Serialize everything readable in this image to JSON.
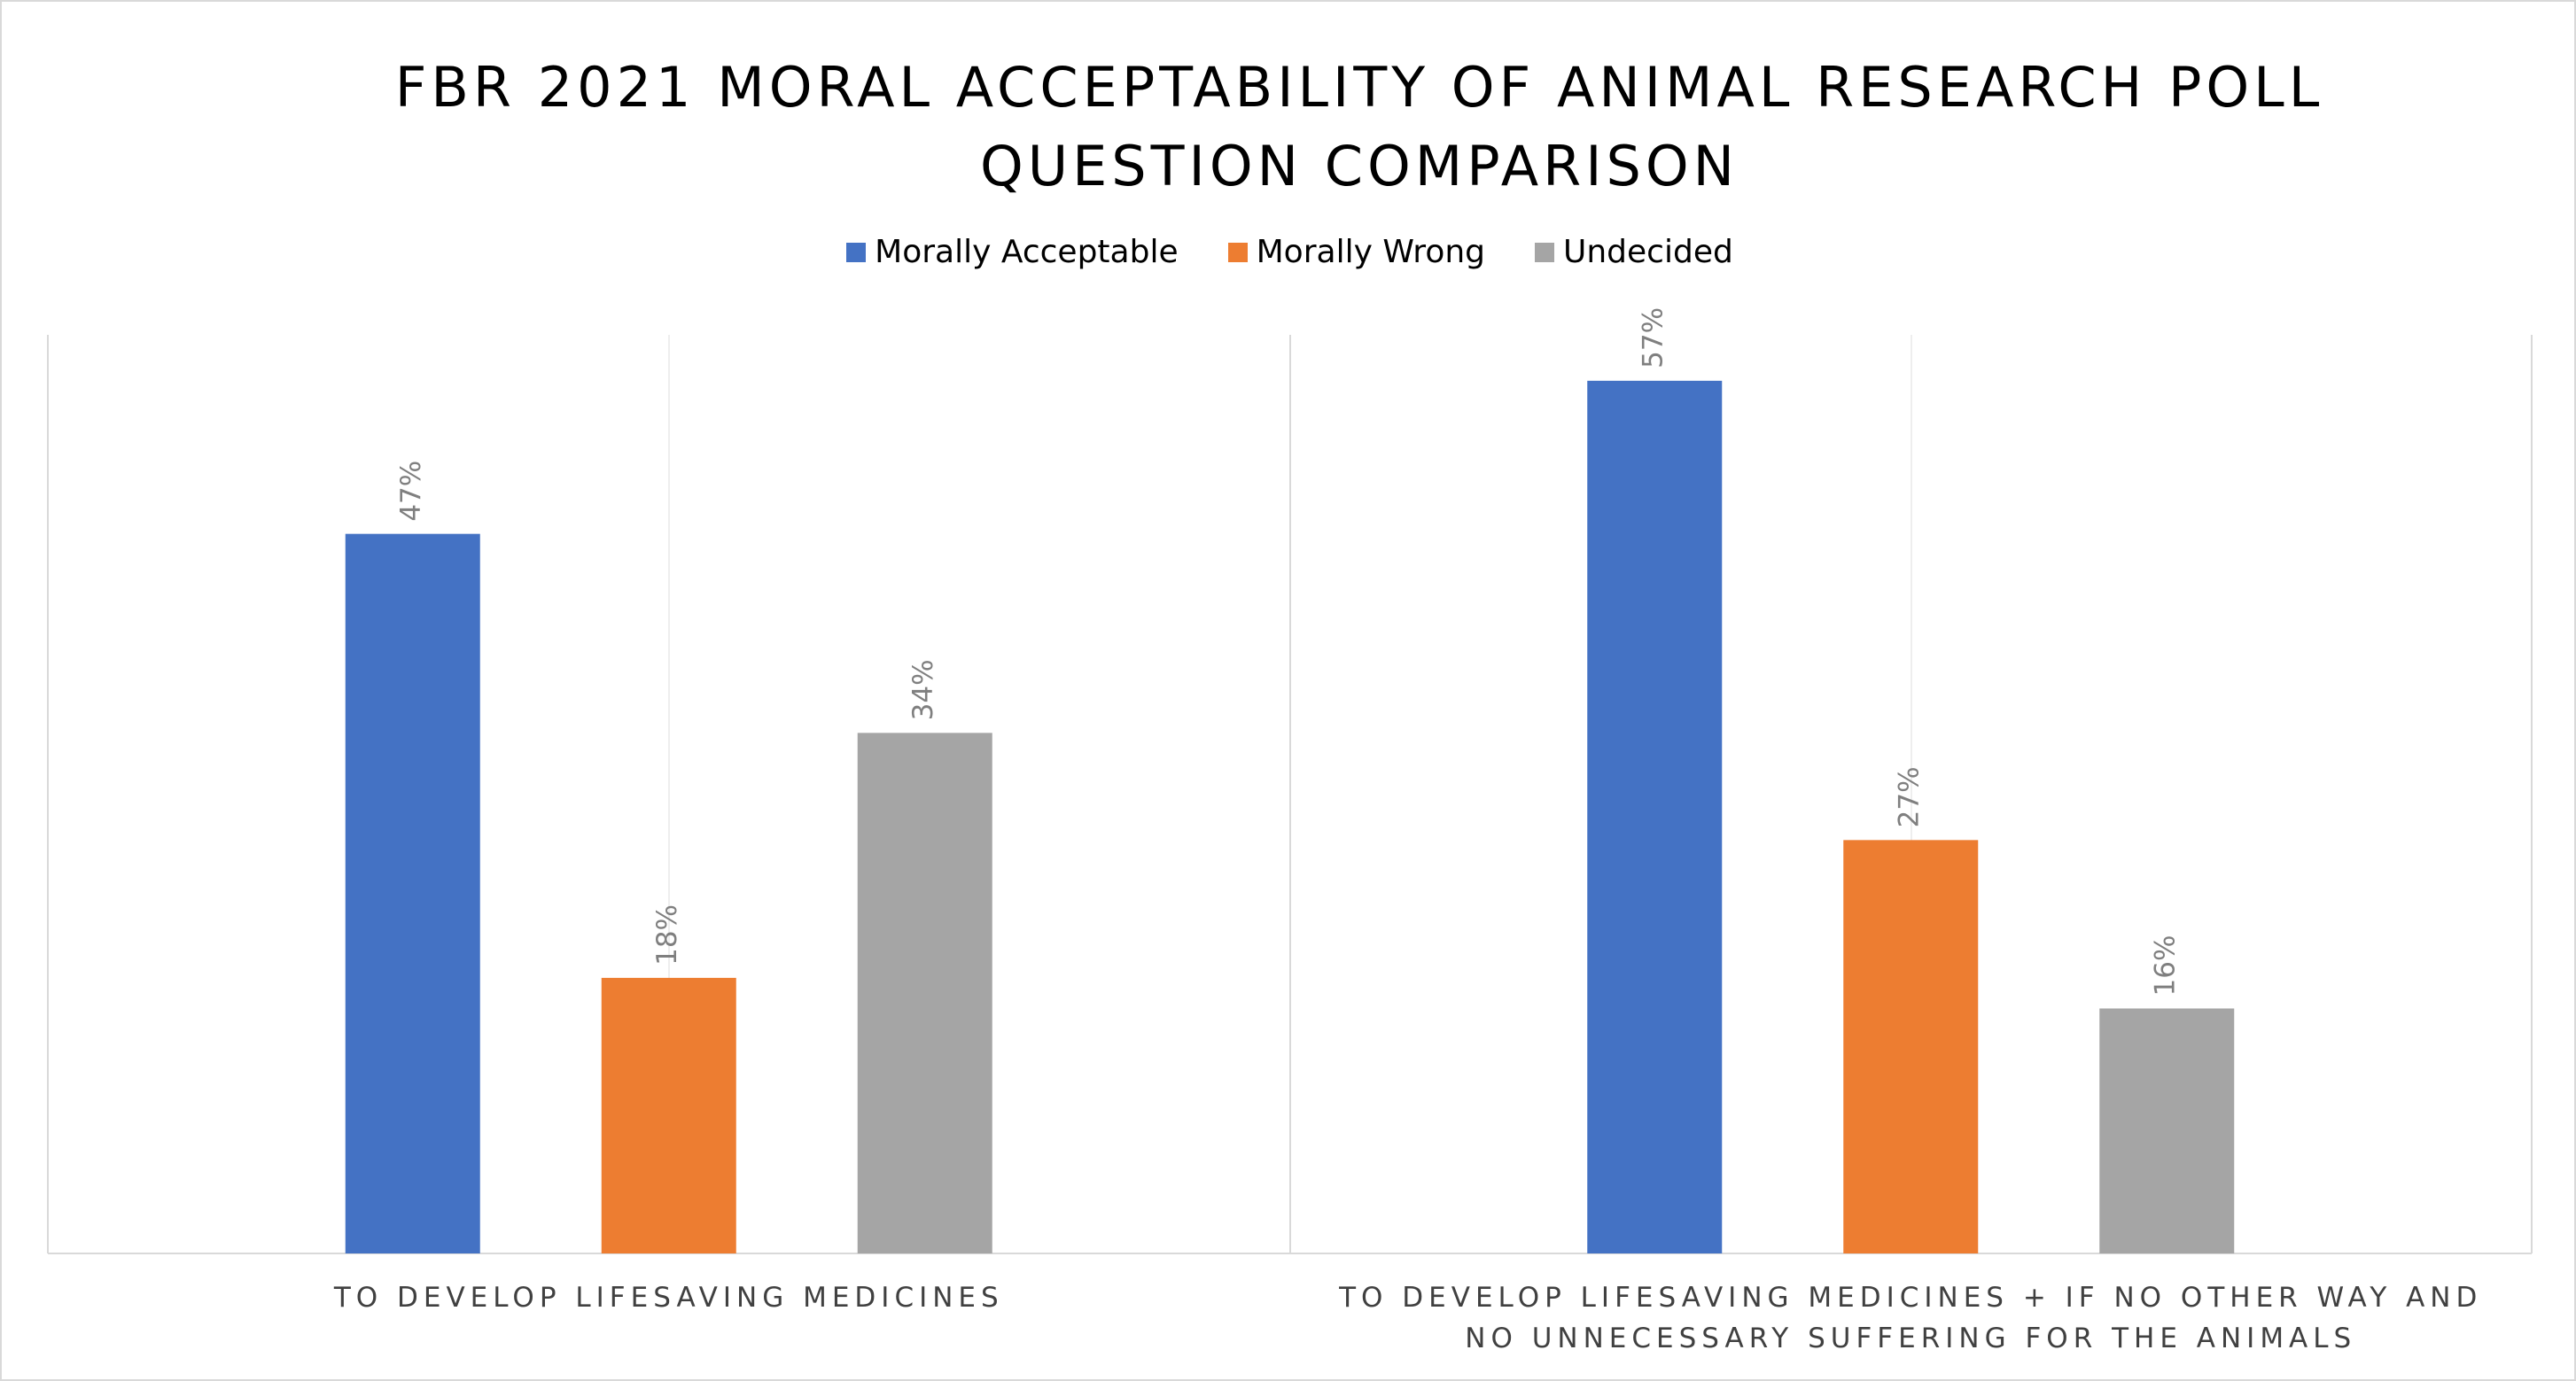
{
  "chart_data": {
    "type": "bar",
    "title": "FBR 2021 MORAL ACCEPTABILITY OF ANIMAL RESEARCH POLL QUESTION COMPARISON",
    "categories": [
      "TO DEVELOP LIFESAVING MEDICINES",
      "TO DEVELOP LIFESAVING MEDICINES + IF NO OTHER WAY AND NO UNNECESSARY SUFFERING FOR THE ANIMALS"
    ],
    "series": [
      {
        "name": "Morally Acceptable",
        "color": "#4472c4",
        "values": [
          47,
          57
        ],
        "value_labels": [
          "47%",
          "57%"
        ]
      },
      {
        "name": "Morally Wrong",
        "color": "#ed7d31",
        "values": [
          18,
          27
        ],
        "value_labels": [
          "18%",
          "27%"
        ]
      },
      {
        "name": "Undecided",
        "color": "#a5a5a5",
        "values": [
          34,
          16
        ],
        "value_labels": [
          "34%",
          "16%"
        ]
      }
    ],
    "ylim": [
      0,
      60
    ],
    "legend": "top"
  }
}
